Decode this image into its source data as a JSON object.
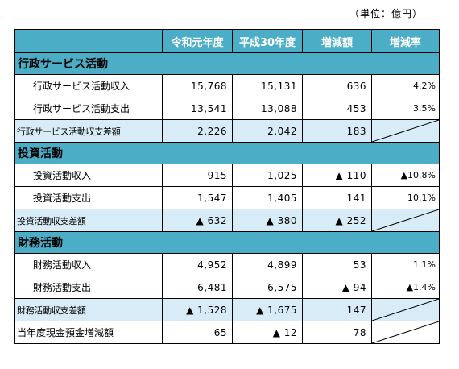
{
  "unit_label": "（単位：億円）",
  "columns": [
    "",
    "令和元年度",
    "平成30年度",
    "増減額",
    "増減率"
  ],
  "sections": [
    {
      "title": "行政サービス活動",
      "items": [
        {
          "label": "行政サービス活動収入",
          "r1": "15,768",
          "h30": "15,131",
          "diff": "636",
          "rate": "4.2%"
        },
        {
          "label": "行政サービス活動支出",
          "r1": "13,541",
          "h30": "13,088",
          "diff": "453",
          "rate": "3.5%"
        }
      ],
      "subtotal": {
        "label": "行政サービス活動収支差額",
        "r1": "2,226",
        "h30": "2,042",
        "diff": "183"
      }
    },
    {
      "title": "投資活動",
      "items": [
        {
          "label": "投資活動収入",
          "r1": "915",
          "h30": "1,025",
          "diff": "▲ 110",
          "rate": "▲10.8%"
        },
        {
          "label": "投資活動支出",
          "r1": "1,547",
          "h30": "1,405",
          "diff": "141",
          "rate": "10.1%"
        }
      ],
      "subtotal": {
        "label": "投資活動収支差額",
        "r1": "▲ 632",
        "h30": "▲ 380",
        "diff": "▲ 252"
      }
    },
    {
      "title": "財務活動",
      "items": [
        {
          "label": "財務活動収入",
          "r1": "4,952",
          "h30": "4,899",
          "diff": "53",
          "rate": "1.1%"
        },
        {
          "label": "財務活動支出",
          "r1": "6,481",
          "h30": "6,575",
          "diff": "▲ 94",
          "rate": "▲1.4%"
        }
      ],
      "subtotal": {
        "label": "財務活動収支差額",
        "r1": "▲ 1,528",
        "h30": "▲ 1,675",
        "diff": "147"
      }
    }
  ],
  "total": {
    "label": "当年度現金預金増減額",
    "r1": "65",
    "h30": "▲ 12",
    "diff": "78"
  },
  "colors": {
    "header_bg": "#4badc6",
    "subtotal_bg": "#d8ecf7"
  }
}
